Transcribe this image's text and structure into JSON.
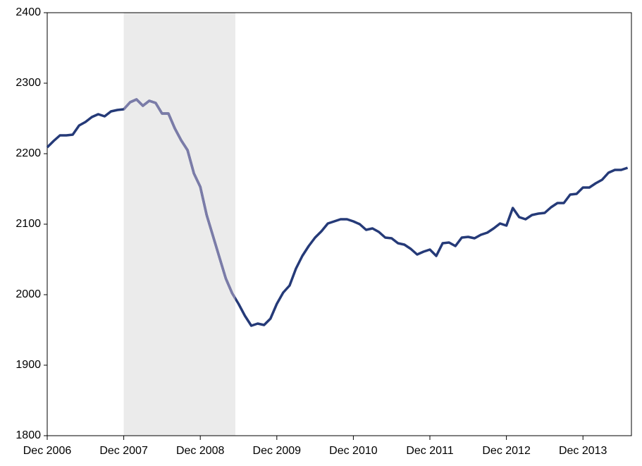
{
  "chart_data": {
    "type": "line",
    "categories": [
      "Dec 2006",
      null,
      null,
      null,
      null,
      null,
      null,
      null,
      null,
      null,
      null,
      null,
      "Dec 2007",
      null,
      null,
      null,
      null,
      null,
      null,
      null,
      null,
      null,
      null,
      null,
      "Dec 2008",
      null,
      null,
      null,
      null,
      null,
      null,
      null,
      null,
      null,
      null,
      null,
      "Dec 2009",
      null,
      null,
      null,
      null,
      null,
      null,
      null,
      null,
      null,
      null,
      null,
      "Dec 2010",
      null,
      null,
      null,
      null,
      null,
      null,
      null,
      null,
      null,
      null,
      null,
      "Dec 2011",
      null,
      null,
      null,
      null,
      null,
      null,
      null,
      null,
      null,
      null,
      null,
      "Dec 2012",
      null,
      null,
      null,
      null,
      null,
      null,
      null,
      null,
      null,
      null,
      null,
      "Dec 2013",
      null,
      null,
      null,
      null,
      null,
      null,
      null
    ],
    "values": [
      2209,
      2218,
      2226,
      2226,
      2227,
      2240,
      2245,
      2252,
      2256,
      2253,
      2260,
      2262,
      2263,
      2273,
      2277,
      2268,
      2275,
      2272,
      2257,
      2257,
      2236,
      2219,
      2205,
      2172,
      2153,
      2113,
      2083,
      2053,
      2023,
      2002,
      1987,
      1970,
      1956,
      1959,
      1957,
      1966,
      1987,
      2003,
      2013,
      2037,
      2055,
      2069,
      2081,
      2090,
      2101,
      2104,
      2107,
      2107,
      2104,
      2100,
      2092,
      2094,
      2089,
      2081,
      2080,
      2073,
      2071,
      2065,
      2057,
      2061,
      2064,
      2055,
      2073,
      2074,
      2069,
      2081,
      2082,
      2080,
      2085,
      2088,
      2094,
      2101,
      2098,
      2123,
      2110,
      2107,
      2113,
      2115,
      2116,
      2124,
      2130,
      2130,
      2142,
      2143,
      2152,
      2152,
      2158,
      2163,
      2173,
      2177,
      2177,
      2180
    ],
    "color": "#253a78",
    "shaded_line_color": "#7b7ca8",
    "shade_color": "#ebebeb",
    "shaded_region": [
      12,
      29.5
    ],
    "ylim": [
      1800,
      2400
    ],
    "yticks": [
      1800,
      1900,
      2000,
      2100,
      2200,
      2300,
      2400
    ],
    "grid": false
  }
}
